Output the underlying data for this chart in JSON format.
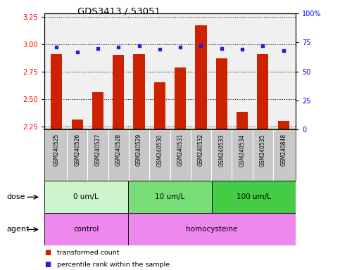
{
  "title": "GDS3413 / 53051",
  "samples": [
    "GSM240525",
    "GSM240526",
    "GSM240527",
    "GSM240528",
    "GSM240529",
    "GSM240530",
    "GSM240531",
    "GSM240532",
    "GSM240533",
    "GSM240534",
    "GSM240535",
    "GSM240848"
  ],
  "red_values": [
    2.91,
    2.31,
    2.56,
    2.9,
    2.91,
    2.65,
    2.79,
    3.17,
    2.87,
    2.38,
    2.91,
    2.3
  ],
  "blue_values": [
    71,
    67,
    70,
    71,
    72,
    69,
    71,
    72,
    70,
    69,
    72,
    68
  ],
  "ylim_left": [
    2.22,
    3.28
  ],
  "ylim_right": [
    0,
    100
  ],
  "yticks_left": [
    2.25,
    2.5,
    2.75,
    3.0,
    3.25
  ],
  "yticks_right": [
    0,
    25,
    50,
    75,
    100
  ],
  "bar_color": "#cc2200",
  "dot_color": "#2222cc",
  "bar_bottom": 2.22,
  "plot_bg": "#f0f0f0",
  "label_bg": "#c8c8c8",
  "dose_groups": [
    {
      "label": "0 um/L",
      "start": 0,
      "end": 4,
      "color": "#ccf5cc"
    },
    {
      "label": "10 um/L",
      "start": 4,
      "end": 8,
      "color": "#77dd77"
    },
    {
      "label": "100 um/L",
      "start": 8,
      "end": 12,
      "color": "#44cc44"
    }
  ],
  "agent_groups": [
    {
      "label": "control",
      "start": 0,
      "end": 4,
      "color": "#ee88ee"
    },
    {
      "label": "homocysteine",
      "start": 4,
      "end": 12,
      "color": "#ee88ee"
    }
  ],
  "dose_label": "dose",
  "agent_label": "agent",
  "legend": [
    {
      "label": "transformed count",
      "color": "#cc2200"
    },
    {
      "label": "percentile rank within the sample",
      "color": "#2222cc"
    }
  ]
}
